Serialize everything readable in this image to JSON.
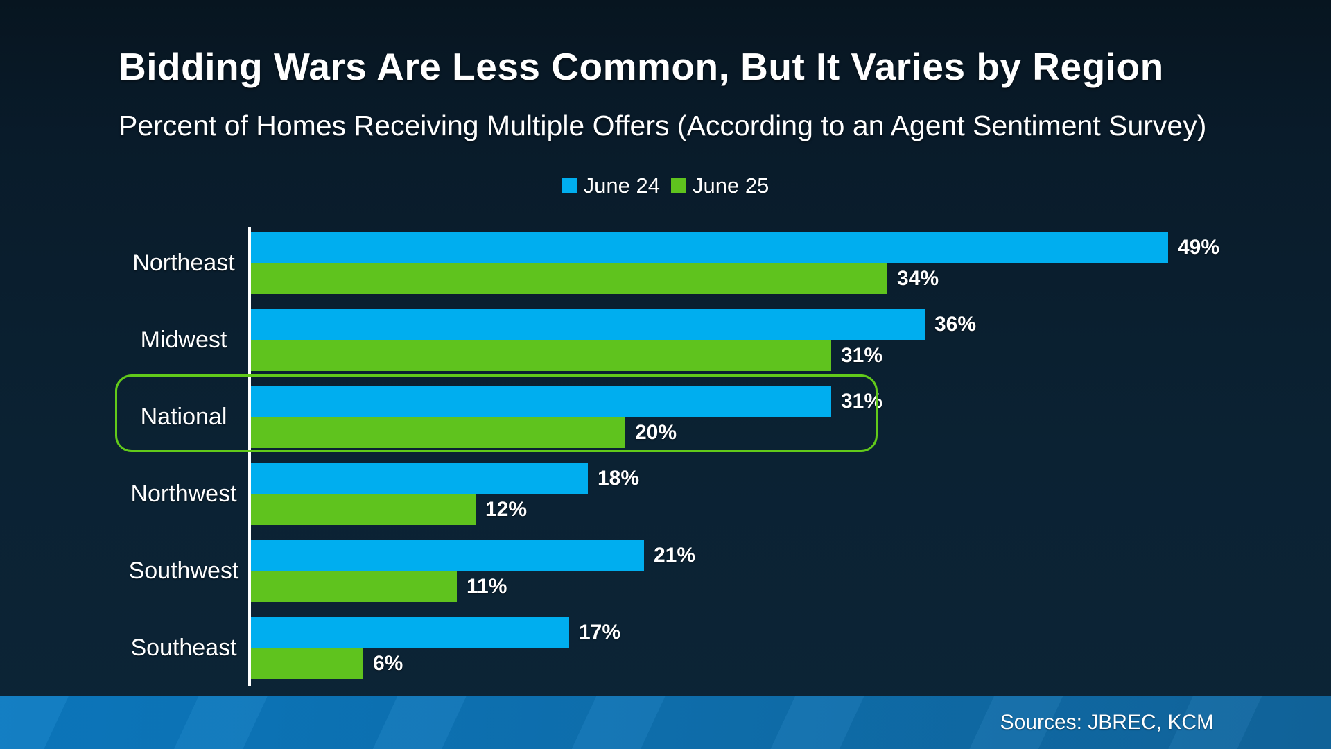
{
  "title": "Bidding Wars Are Less Common, But It Varies by Region",
  "subtitle": "Percent of Homes Receiving Multiple Offers (According to an Agent Sentiment Survey)",
  "footer": {
    "sources": "Sources: JBREC, KCM"
  },
  "colors": {
    "background_top": "#071520",
    "background_bottom": "#0c2436",
    "series_june24": "#00AEEF",
    "series_june25": "#5FC31E",
    "highlight_border": "#62CA1A",
    "axis_line": "#FFFFFF",
    "text": "#FFFFFF",
    "footer_left": "#0B7AC1",
    "footer_right": "#11669E"
  },
  "chart_data": {
    "type": "bar",
    "orientation": "horizontal",
    "title": "Bidding Wars Are Less Common, But It Varies by Region",
    "subtitle": "Percent of Homes Receiving Multiple Offers (According to an Agent Sentiment Survey)",
    "categories": [
      "Northeast",
      "Midwest",
      "National",
      "Northwest",
      "Southwest",
      "Southeast"
    ],
    "series": [
      {
        "name": "June 24",
        "color": "#00AEEF",
        "values": [
          49,
          36,
          31,
          18,
          21,
          17
        ]
      },
      {
        "name": "June 25",
        "color": "#5FC31E",
        "values": [
          34,
          31,
          20,
          12,
          11,
          6
        ]
      }
    ],
    "value_suffix": "%",
    "highlighted_category": "National",
    "highlight_color": "#62CA1A",
    "xlim": [
      0,
      52
    ],
    "grid": false,
    "legend_position": "top-center",
    "value_labels": "outside-end"
  }
}
